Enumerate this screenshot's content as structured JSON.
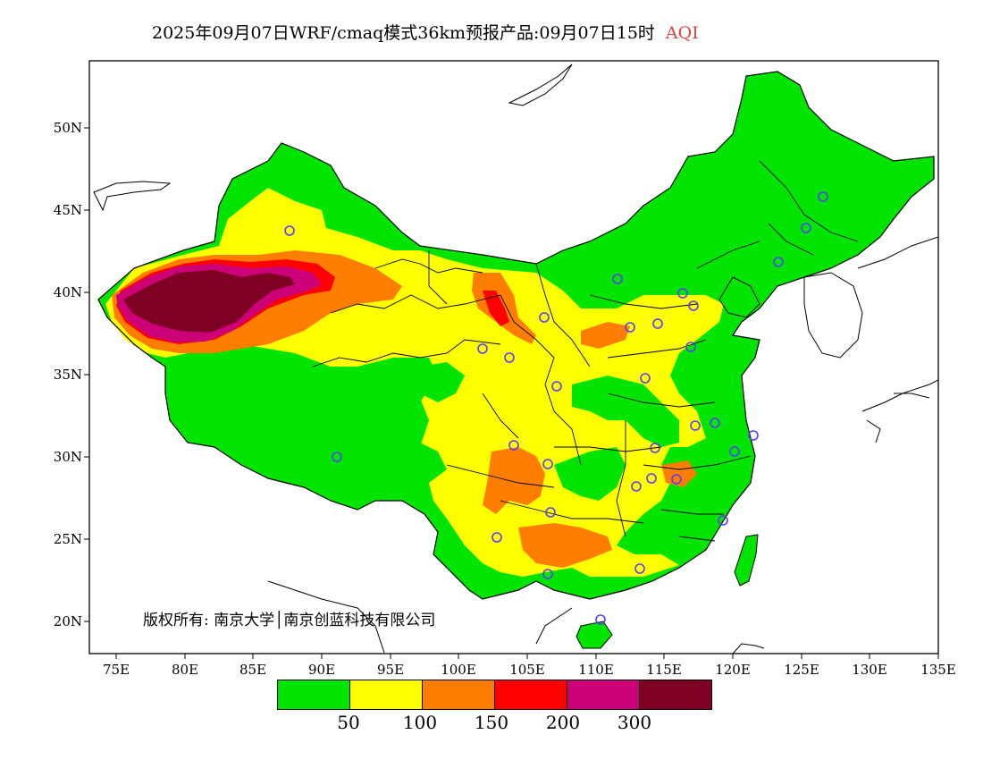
{
  "title": {
    "text": "2025年09月07日WRF/cmaq模式36km预报产品:09月07日15时",
    "variable": "AQI"
  },
  "axes": {
    "lat_labels": [
      "50N",
      "45N",
      "40N",
      "35N",
      "30N",
      "25N",
      "20N"
    ],
    "lon_labels": [
      "75E",
      "80E",
      "85E",
      "90E",
      "95E",
      "100E",
      "105E",
      "110E",
      "115E",
      "120E",
      "125E",
      "130E",
      "135E"
    ]
  },
  "copyright": "版权所有: 南京大学│南京创蓝科技有限公司",
  "legend": {
    "colors": [
      "#00e400",
      "#ffff00",
      "#ff7e00",
      "#ff0000",
      "#cc0077",
      "#7e0023"
    ],
    "labels": [
      "50",
      "100",
      "150",
      "200",
      "300"
    ]
  }
}
